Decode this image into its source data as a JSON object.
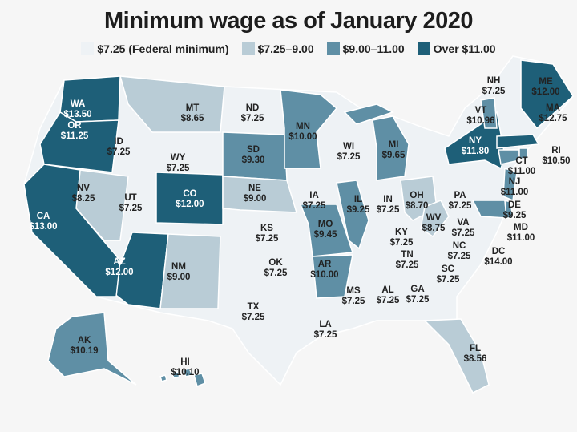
{
  "title": "Minimum wage as of January 2020",
  "legend": [
    {
      "label": "$7.25 (Federal minimum)",
      "color": "#eef2f5"
    },
    {
      "label": "$7.25–9.00",
      "color": "#b9ccd6"
    },
    {
      "label": "$9.00–11.00",
      "color": "#5f8fa5"
    },
    {
      "label": "Over $11.00",
      "color": "#1e5f78"
    }
  ],
  "states": [
    {
      "code": "WA",
      "wage": "$13.50",
      "tier": 3
    },
    {
      "code": "OR",
      "wage": "$11.25",
      "tier": 3
    },
    {
      "code": "CA",
      "wage": "$13.00",
      "tier": 3
    },
    {
      "code": "NV",
      "wage": "$8.25",
      "tier": 1
    },
    {
      "code": "ID",
      "wage": "$7.25",
      "tier": 0
    },
    {
      "code": "MT",
      "wage": "$8.65",
      "tier": 1
    },
    {
      "code": "WY",
      "wage": "$7.25",
      "tier": 0
    },
    {
      "code": "UT",
      "wage": "$7.25",
      "tier": 0
    },
    {
      "code": "AZ",
      "wage": "$12.00",
      "tier": 3
    },
    {
      "code": "CO",
      "wage": "$12.00",
      "tier": 3
    },
    {
      "code": "NM",
      "wage": "$9.00",
      "tier": 1
    },
    {
      "code": "ND",
      "wage": "$7.25",
      "tier": 0
    },
    {
      "code": "SD",
      "wage": "$9.30",
      "tier": 2
    },
    {
      "code": "NE",
      "wage": "$9.00",
      "tier": 1
    },
    {
      "code": "KS",
      "wage": "$7.25",
      "tier": 0
    },
    {
      "code": "OK",
      "wage": "$7.25",
      "tier": 0
    },
    {
      "code": "TX",
      "wage": "$7.25",
      "tier": 0
    },
    {
      "code": "MN",
      "wage": "$10.00",
      "tier": 2
    },
    {
      "code": "IA",
      "wage": "$7.25",
      "tier": 0
    },
    {
      "code": "MO",
      "wage": "$9.45",
      "tier": 2
    },
    {
      "code": "AR",
      "wage": "$10.00",
      "tier": 2
    },
    {
      "code": "LA",
      "wage": "$7.25",
      "tier": 0
    },
    {
      "code": "WI",
      "wage": "$7.25",
      "tier": 0
    },
    {
      "code": "IL",
      "wage": "$9.25",
      "tier": 2
    },
    {
      "code": "MI",
      "wage": "$9.65",
      "tier": 2
    },
    {
      "code": "IN",
      "wage": "$7.25",
      "tier": 0
    },
    {
      "code": "KY",
      "wage": "$7.25",
      "tier": 0
    },
    {
      "code": "TN",
      "wage": "$7.25",
      "tier": 0
    },
    {
      "code": "MS",
      "wage": "$7.25",
      "tier": 0
    },
    {
      "code": "AL",
      "wage": "$7.25",
      "tier": 0
    },
    {
      "code": "OH",
      "wage": "$8.70",
      "tier": 1
    },
    {
      "code": "WV",
      "wage": "$8.75",
      "tier": 1
    },
    {
      "code": "VA",
      "wage": "$7.25",
      "tier": 0
    },
    {
      "code": "NC",
      "wage": "$7.25",
      "tier": 0
    },
    {
      "code": "SC",
      "wage": "$7.25",
      "tier": 0
    },
    {
      "code": "GA",
      "wage": "$7.25",
      "tier": 0
    },
    {
      "code": "FL",
      "wage": "$8.56",
      "tier": 1
    },
    {
      "code": "PA",
      "wage": "$7.25",
      "tier": 0
    },
    {
      "code": "NY",
      "wage": "$11.80",
      "tier": 3
    },
    {
      "code": "VT",
      "wage": "$10.96",
      "tier": 2
    },
    {
      "code": "NH",
      "wage": "$7.25",
      "tier": 0
    },
    {
      "code": "ME",
      "wage": "$12.00",
      "tier": 3
    },
    {
      "code": "MA",
      "wage": "$12.75",
      "tier": 3
    },
    {
      "code": "RI",
      "wage": "$10.50",
      "tier": 2
    },
    {
      "code": "CT",
      "wage": "$11.00",
      "tier": 2
    },
    {
      "code": "NJ",
      "wage": "$11.00",
      "tier": 2
    },
    {
      "code": "DE",
      "wage": "$9.25",
      "tier": 2
    },
    {
      "code": "MD",
      "wage": "$11.00",
      "tier": 2
    },
    {
      "code": "DC",
      "wage": "$14.00",
      "tier": 3
    },
    {
      "code": "AK",
      "wage": "$10.19",
      "tier": 2
    },
    {
      "code": "HI",
      "wage": "$10.10",
      "tier": 2
    }
  ]
}
